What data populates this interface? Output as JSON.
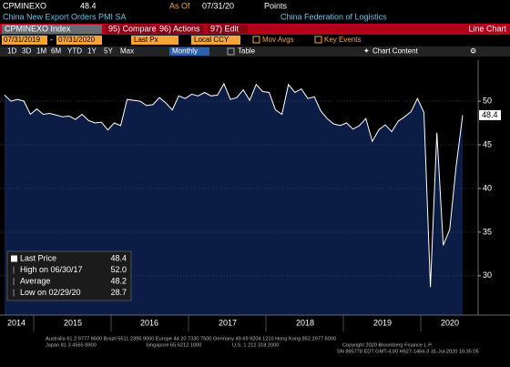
{
  "header": {
    "ticker": "CPMINEXO",
    "last": "48.4",
    "as_of_label": "As Of",
    "as_of_date": "07/31/20",
    "units": "Points",
    "description": "China New Export Orders PMI SA",
    "source": "China Federation of Logistics"
  },
  "toolbar": {
    "security": "CPMINEXO Index",
    "compare": "95) Compare",
    "actions": "96) Actions",
    "edit": "97) Edit",
    "chart_type": "Line Chart",
    "start_date": "07/31/2019",
    "dash": "-",
    "end_date": "07/31/2020",
    "field": "Last Px",
    "currency": "Local CCY",
    "mov_avgs": "Mov Avgs",
    "key_events": "Key Events",
    "periods": [
      "1D",
      "3D",
      "1M",
      "6M",
      "YTD",
      "1Y",
      "5Y",
      "Max"
    ],
    "frequency": "Monthly",
    "table": "Table",
    "chart_content": "Chart Content"
  },
  "chart_data": {
    "type": "area",
    "year_labels": [
      "2014",
      "2015",
      "2016",
      "2017",
      "2018",
      "2019",
      "2020"
    ],
    "series": [
      {
        "name": "Last Price",
        "color": "#ffffff",
        "fill": "#0b1d44",
        "values": [
          50.7,
          50.0,
          50.2,
          50.0,
          48.5,
          49.1,
          48.5,
          48.6,
          48.4,
          48.2,
          48.3,
          47.9,
          48.5,
          47.8,
          47.5,
          47.6,
          46.7,
          47.5,
          47.2,
          50.2,
          50.1,
          50.0,
          49.5,
          49.6,
          50.4,
          49.8,
          49.0,
          50.6,
          50.3,
          50.8,
          50.6,
          51.0,
          50.6,
          50.7,
          52.0,
          50.2,
          50.4,
          51.3,
          50.1,
          51.9,
          51.1,
          51.0,
          49.0,
          48.5,
          51.9,
          51.0,
          51.4,
          50.3,
          50.5,
          48.9,
          48.0,
          47.4,
          47.2,
          47.5,
          46.8,
          47.2,
          48.0,
          45.4,
          46.7,
          47.3,
          46.5,
          47.7,
          48.2,
          48.8,
          50.3,
          48.7,
          28.7,
          46.4,
          33.5,
          35.3,
          42.6,
          48.4
        ]
      }
    ],
    "ylim": [
      25.5,
      54.7
    ],
    "yticks": [
      30,
      35,
      40,
      45,
      50
    ],
    "grid": true,
    "legend": [
      {
        "label": "Last Price",
        "value": "48.4"
      },
      {
        "label": "High on 06/30/17",
        "value": "52.0"
      },
      {
        "label": "Average",
        "value": "48.2"
      },
      {
        "label": "Low on 02/29/20",
        "value": "28.7"
      }
    ]
  },
  "footer": {
    "line1": "Australia 61 2 9777 8600 Brazil 5511 2395 9000 Europe 44 20 7330 7500 Germany 49 69 9204 1210 Hong Kong 852 2977 6000",
    "line2a": "Japan 81 3 4565 8900",
    "line2b": "Singapore 65 6212 1000",
    "line2c": "U.S. 1 212 318 2000",
    "line2d": "Copyright 2020 Bloomberg Finance L.P.",
    "line3": "SN 895778 EDT  GMT-4:00 H527-1464-3 31-Jul-2020 10:35:05"
  }
}
